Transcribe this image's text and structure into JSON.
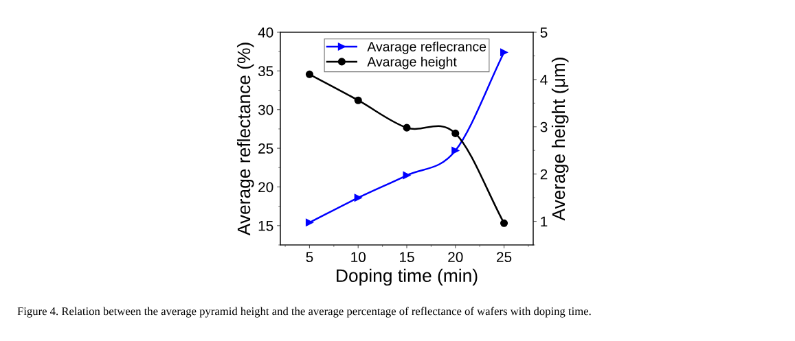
{
  "chart_data": {
    "type": "line",
    "xlabel": "Doping time (min)",
    "ylabel": "Average reflectance (%)",
    "y2label": "Average height (μm)",
    "x": [
      5,
      10,
      15,
      20,
      25
    ],
    "series": [
      {
        "name": "Avarage reflecrance",
        "color": "#0000ff",
        "marker": "triangle",
        "values": [
          15.4,
          18.6,
          21.5,
          24.7,
          37.4
        ]
      },
      {
        "name": "Avarage height",
        "color": "#000000",
        "marker": "circle",
        "axis": "y2",
        "values": [
          4.11,
          3.56,
          2.98,
          2.86,
          0.96
        ]
      }
    ],
    "xlim": [
      2,
      28
    ],
    "xticks": [
      5,
      10,
      15,
      20,
      25
    ],
    "ylim": [
      12.5,
      40
    ],
    "yticks": [
      15,
      20,
      25,
      30,
      35,
      40
    ],
    "y2lim": [
      0.5,
      5
    ],
    "y2ticks": [
      1,
      2,
      3,
      4,
      5
    ],
    "legend": "top",
    "grid": false,
    "line_style": "solid",
    "annotations": [
      "Figure 4. Relation between the average pyramid height and the average percentage of reflectance of wafers with doping time."
    ]
  }
}
